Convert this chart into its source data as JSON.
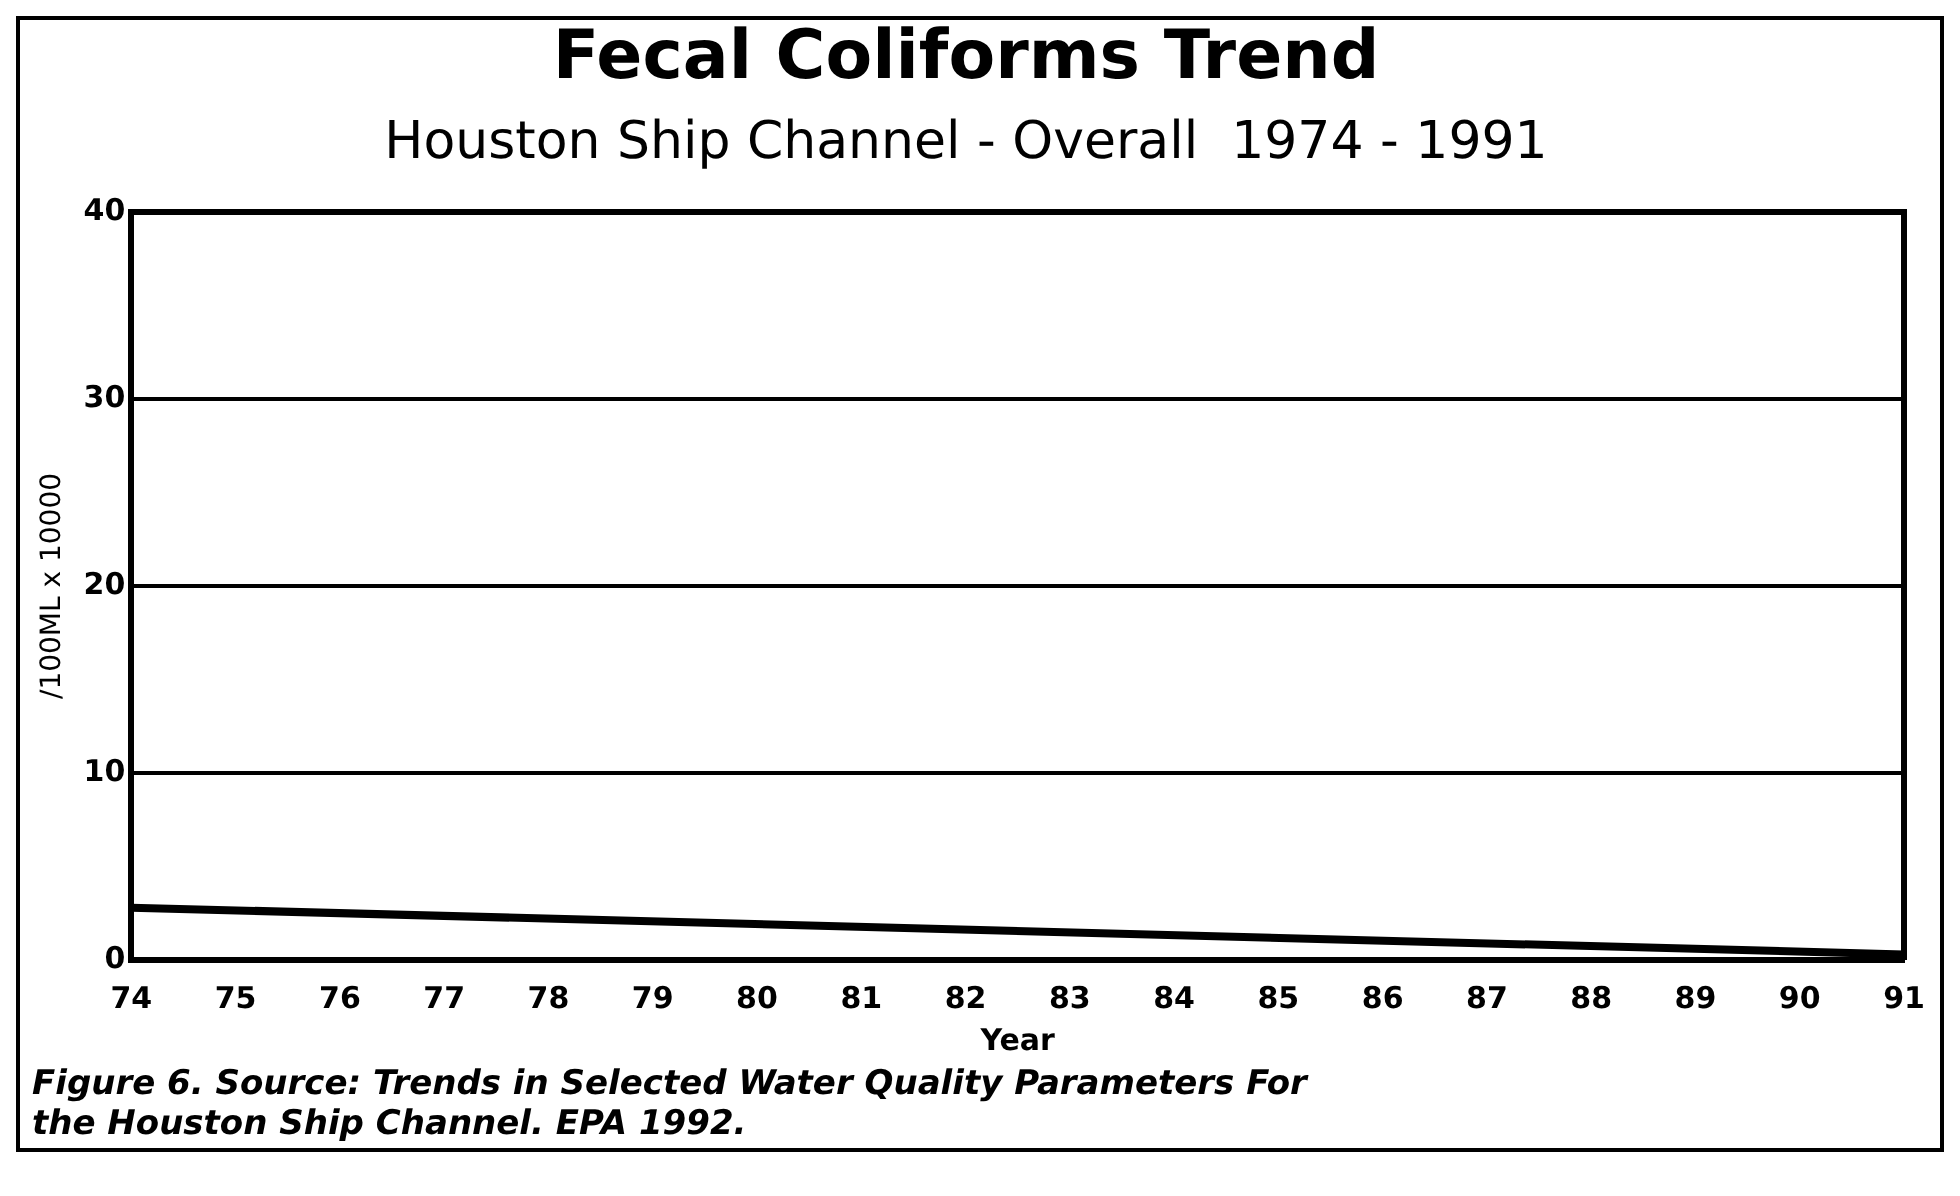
{
  "chart_data": {
    "type": "line",
    "title": "Fecal Coliforms Trend",
    "subtitle": "Houston Ship Channel - Overall  1974 - 1991",
    "xlabel": "Year",
    "ylabel": "/100ML x 10000",
    "x": [
      74,
      91
    ],
    "series": [
      {
        "color": "#000000",
        "values": [
          2.8,
          0.3
        ]
      }
    ],
    "xlim": [
      74,
      91
    ],
    "xticks": [
      74,
      75,
      76,
      77,
      78,
      79,
      80,
      81,
      82,
      83,
      84,
      85,
      86,
      87,
      88,
      89,
      90,
      91
    ],
    "ylim": [
      0,
      40
    ],
    "yticks": [
      0,
      10,
      20,
      30,
      40
    ],
    "grid": "y",
    "legend": false,
    "marker": "none",
    "line_style": "solid",
    "annotations": [
      "Figure 6.  Source: Trends in Selected Water Quality Parameters For the Houston Ship Channel.  EPA 1992."
    ]
  }
}
